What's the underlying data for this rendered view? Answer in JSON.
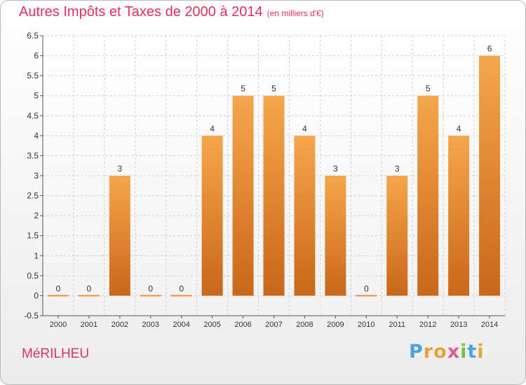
{
  "title": "Autres Impôts et Taxes de 2000 à 2014",
  "unit": "(en milliers d'€)",
  "place": "MéRILHEU",
  "logo": {
    "letters": [
      "P",
      "r",
      "o",
      "x",
      "i",
      "t",
      "i"
    ],
    "colors": [
      "#4aa3df",
      "#e8a23a",
      "#e8a23a",
      "#e35a8c",
      "#7cc242",
      "#4aa3df",
      "#e8a23a"
    ]
  },
  "chart_data": {
    "type": "bar",
    "title": "Autres Impôts et Taxes de 2000 à 2014",
    "ylabel": "en milliers d'€",
    "categories": [
      "2000",
      "2001",
      "2002",
      "2003",
      "2004",
      "2005",
      "2006",
      "2007",
      "2008",
      "2009",
      "2010",
      "2011",
      "2012",
      "2013",
      "2014"
    ],
    "values": [
      0,
      0,
      3,
      0,
      0,
      4,
      5,
      5,
      4,
      3,
      0,
      3,
      5,
      4,
      6
    ],
    "labels": [
      "0",
      "0",
      "3",
      "0",
      "0",
      "4",
      "5",
      "5",
      "4",
      "3",
      "0",
      "3",
      "5",
      "4",
      "6"
    ],
    "ylim": [
      -0.5,
      6.5
    ],
    "yticks": [
      -0.5,
      0,
      0.5,
      1,
      1.5,
      2,
      2.5,
      3,
      3.5,
      4,
      4.5,
      5,
      5.5,
      6,
      6.5
    ],
    "ytick_labels": [
      "-0.5",
      "0",
      "0.5",
      "1",
      "1.5",
      "2",
      "2.5",
      "3",
      "3.5",
      "4",
      "4.5",
      "5",
      "5.5",
      "6",
      "6.5"
    ],
    "bar_color": "#f0913a",
    "grid": true
  }
}
